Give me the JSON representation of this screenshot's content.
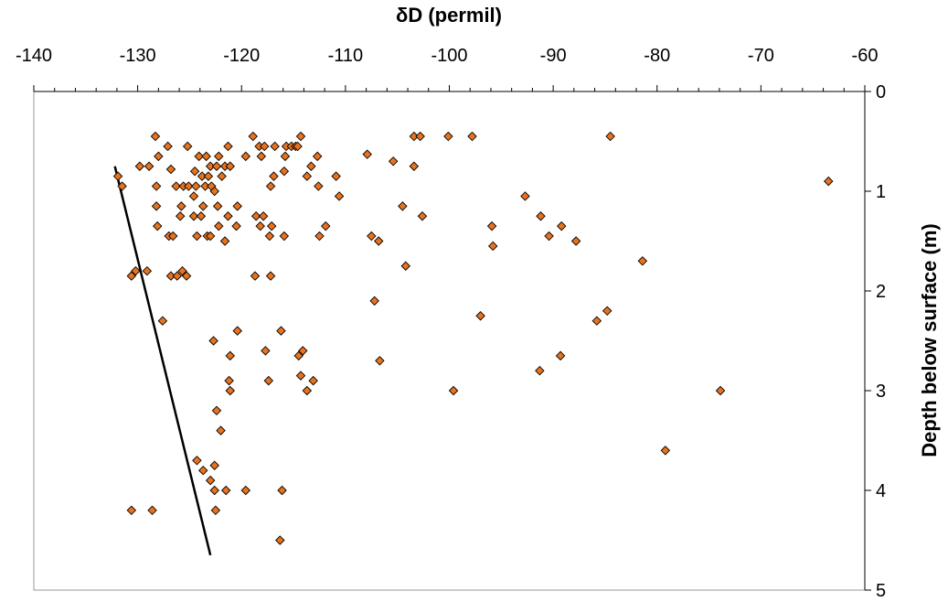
{
  "chart_data": {
    "type": "scatter",
    "xlabel": "δD (permil)",
    "ylabel": "Depth below surface (m)",
    "xlim": [
      -140,
      -60
    ],
    "ylim": [
      0,
      5
    ],
    "y_inverted": true,
    "x_axis_position": "top",
    "y_axis_position": "right",
    "x_ticks": [
      -140,
      -130,
      -120,
      -110,
      -100,
      -90,
      -80,
      -70,
      -60
    ],
    "y_ticks": [
      0,
      1,
      2,
      3,
      4,
      5
    ],
    "grid": false,
    "marker_color": "#E8731F",
    "marker_edge_color": "#000000",
    "trend_line": [
      [
        -132.2,
        0.75
      ],
      [
        -123.0,
        4.65
      ]
    ],
    "points": [
      [
        -128.3,
        0.45
      ],
      [
        -127.1,
        0.55
      ],
      [
        -125.2,
        0.55
      ],
      [
        -121.3,
        0.55
      ],
      [
        -118.9,
        0.45
      ],
      [
        -118.3,
        0.55
      ],
      [
        -117.8,
        0.55
      ],
      [
        -116.8,
        0.55
      ],
      [
        -115.7,
        0.55
      ],
      [
        -115.2,
        0.55
      ],
      [
        -114.8,
        0.55
      ],
      [
        -114.6,
        0.55
      ],
      [
        -114.3,
        0.45
      ],
      [
        -103.4,
        0.45
      ],
      [
        -102.8,
        0.45
      ],
      [
        -100.1,
        0.45
      ],
      [
        -97.8,
        0.45
      ],
      [
        -84.5,
        0.45
      ],
      [
        -128.0,
        0.65
      ],
      [
        -124.1,
        0.65
      ],
      [
        -123.4,
        0.65
      ],
      [
        -122.2,
        0.65
      ],
      [
        -119.6,
        0.65
      ],
      [
        -115.8,
        0.65
      ],
      [
        -112.7,
        0.65
      ],
      [
        -107.9,
        0.63
      ],
      [
        -105.4,
        0.7
      ],
      [
        -103.4,
        0.75
      ],
      [
        -131.9,
        0.85
      ],
      [
        -131.5,
        0.95
      ],
      [
        -129.8,
        0.75
      ],
      [
        -128.9,
        0.75
      ],
      [
        -126.8,
        0.78
      ],
      [
        -124.5,
        0.8
      ],
      [
        -123.8,
        0.85
      ],
      [
        -123.0,
        0.75
      ],
      [
        -122.4,
        0.75
      ],
      [
        -121.6,
        0.75
      ],
      [
        -121.1,
        0.75
      ],
      [
        -118.1,
        0.65
      ],
      [
        -116.9,
        0.85
      ],
      [
        -115.9,
        0.8
      ],
      [
        -113.7,
        0.85
      ],
      [
        -113.3,
        0.75
      ],
      [
        -110.9,
        0.85
      ],
      [
        -63.5,
        0.9
      ],
      [
        -128.2,
        0.95
      ],
      [
        -126.3,
        0.95
      ],
      [
        -125.6,
        0.95
      ],
      [
        -125.1,
        0.95
      ],
      [
        -124.4,
        0.95
      ],
      [
        -123.5,
        0.95
      ],
      [
        -123.2,
        0.85
      ],
      [
        -122.9,
        0.95
      ],
      [
        -122.6,
        1.0
      ],
      [
        -121.9,
        0.85
      ],
      [
        -117.2,
        0.95
      ],
      [
        -112.6,
        0.95
      ],
      [
        -110.6,
        1.05
      ],
      [
        -92.7,
        1.05
      ],
      [
        -128.2,
        1.15
      ],
      [
        -125.8,
        1.15
      ],
      [
        -124.6,
        1.05
      ],
      [
        -123.7,
        1.15
      ],
      [
        -122.3,
        1.15
      ],
      [
        -120.4,
        1.15
      ],
      [
        -104.5,
        1.15
      ],
      [
        -128.1,
        1.35
      ],
      [
        -125.9,
        1.25
      ],
      [
        -124.6,
        1.25
      ],
      [
        -123.9,
        1.25
      ],
      [
        -122.2,
        1.35
      ],
      [
        -121.3,
        1.25
      ],
      [
        -120.5,
        1.35
      ],
      [
        -118.6,
        1.25
      ],
      [
        -117.9,
        1.25
      ],
      [
        -118.2,
        1.35
      ],
      [
        -117.1,
        1.35
      ],
      [
        -111.9,
        1.35
      ],
      [
        -102.6,
        1.25
      ],
      [
        -95.9,
        1.35
      ],
      [
        -91.2,
        1.25
      ],
      [
        -89.2,
        1.35
      ],
      [
        -127.0,
        1.45
      ],
      [
        -126.6,
        1.45
      ],
      [
        -124.3,
        1.45
      ],
      [
        -123.3,
        1.45
      ],
      [
        -123.0,
        1.45
      ],
      [
        -121.6,
        1.5
      ],
      [
        -117.3,
        1.45
      ],
      [
        -115.9,
        1.45
      ],
      [
        -112.5,
        1.45
      ],
      [
        -107.5,
        1.45
      ],
      [
        -106.8,
        1.5
      ],
      [
        -95.8,
        1.55
      ],
      [
        -90.4,
        1.45
      ],
      [
        -87.8,
        1.5
      ],
      [
        -130.6,
        1.85
      ],
      [
        -130.2,
        1.8
      ],
      [
        -129.1,
        1.8
      ],
      [
        -126.8,
        1.85
      ],
      [
        -126.2,
        1.85
      ],
      [
        -125.7,
        1.8
      ],
      [
        -125.3,
        1.85
      ],
      [
        -118.7,
        1.85
      ],
      [
        -117.2,
        1.85
      ],
      [
        -104.2,
        1.75
      ],
      [
        -81.4,
        1.7
      ],
      [
        -127.6,
        2.3
      ],
      [
        -107.2,
        2.1
      ],
      [
        -97.0,
        2.25
      ],
      [
        -85.8,
        2.3
      ],
      [
        -84.8,
        2.2
      ],
      [
        -122.7,
        2.5
      ],
      [
        -120.4,
        2.4
      ],
      [
        -121.1,
        2.65
      ],
      [
        -116.2,
        2.4
      ],
      [
        -117.7,
        2.6
      ],
      [
        -114.5,
        2.65
      ],
      [
        -114.1,
        2.6
      ],
      [
        -106.7,
        2.7
      ],
      [
        -89.3,
        2.65
      ],
      [
        -121.2,
        2.9
      ],
      [
        -117.4,
        2.9
      ],
      [
        -114.3,
        2.85
      ],
      [
        -113.1,
        2.9
      ],
      [
        -113.7,
        3.0
      ],
      [
        -121.1,
        3.0
      ],
      [
        -99.6,
        3.0
      ],
      [
        -91.3,
        2.8
      ],
      [
        -73.9,
        3.0
      ],
      [
        -122.4,
        3.2
      ],
      [
        -122.0,
        3.4
      ],
      [
        -79.2,
        3.6
      ],
      [
        -124.3,
        3.7
      ],
      [
        -123.7,
        3.8
      ],
      [
        -122.6,
        3.75
      ],
      [
        -123.0,
        3.9
      ],
      [
        -122.6,
        4.0
      ],
      [
        -121.5,
        4.0
      ],
      [
        -119.6,
        4.0
      ],
      [
        -116.1,
        4.0
      ],
      [
        -130.6,
        4.2
      ],
      [
        -128.6,
        4.2
      ],
      [
        -122.5,
        4.2
      ],
      [
        -116.3,
        4.5
      ]
    ]
  }
}
